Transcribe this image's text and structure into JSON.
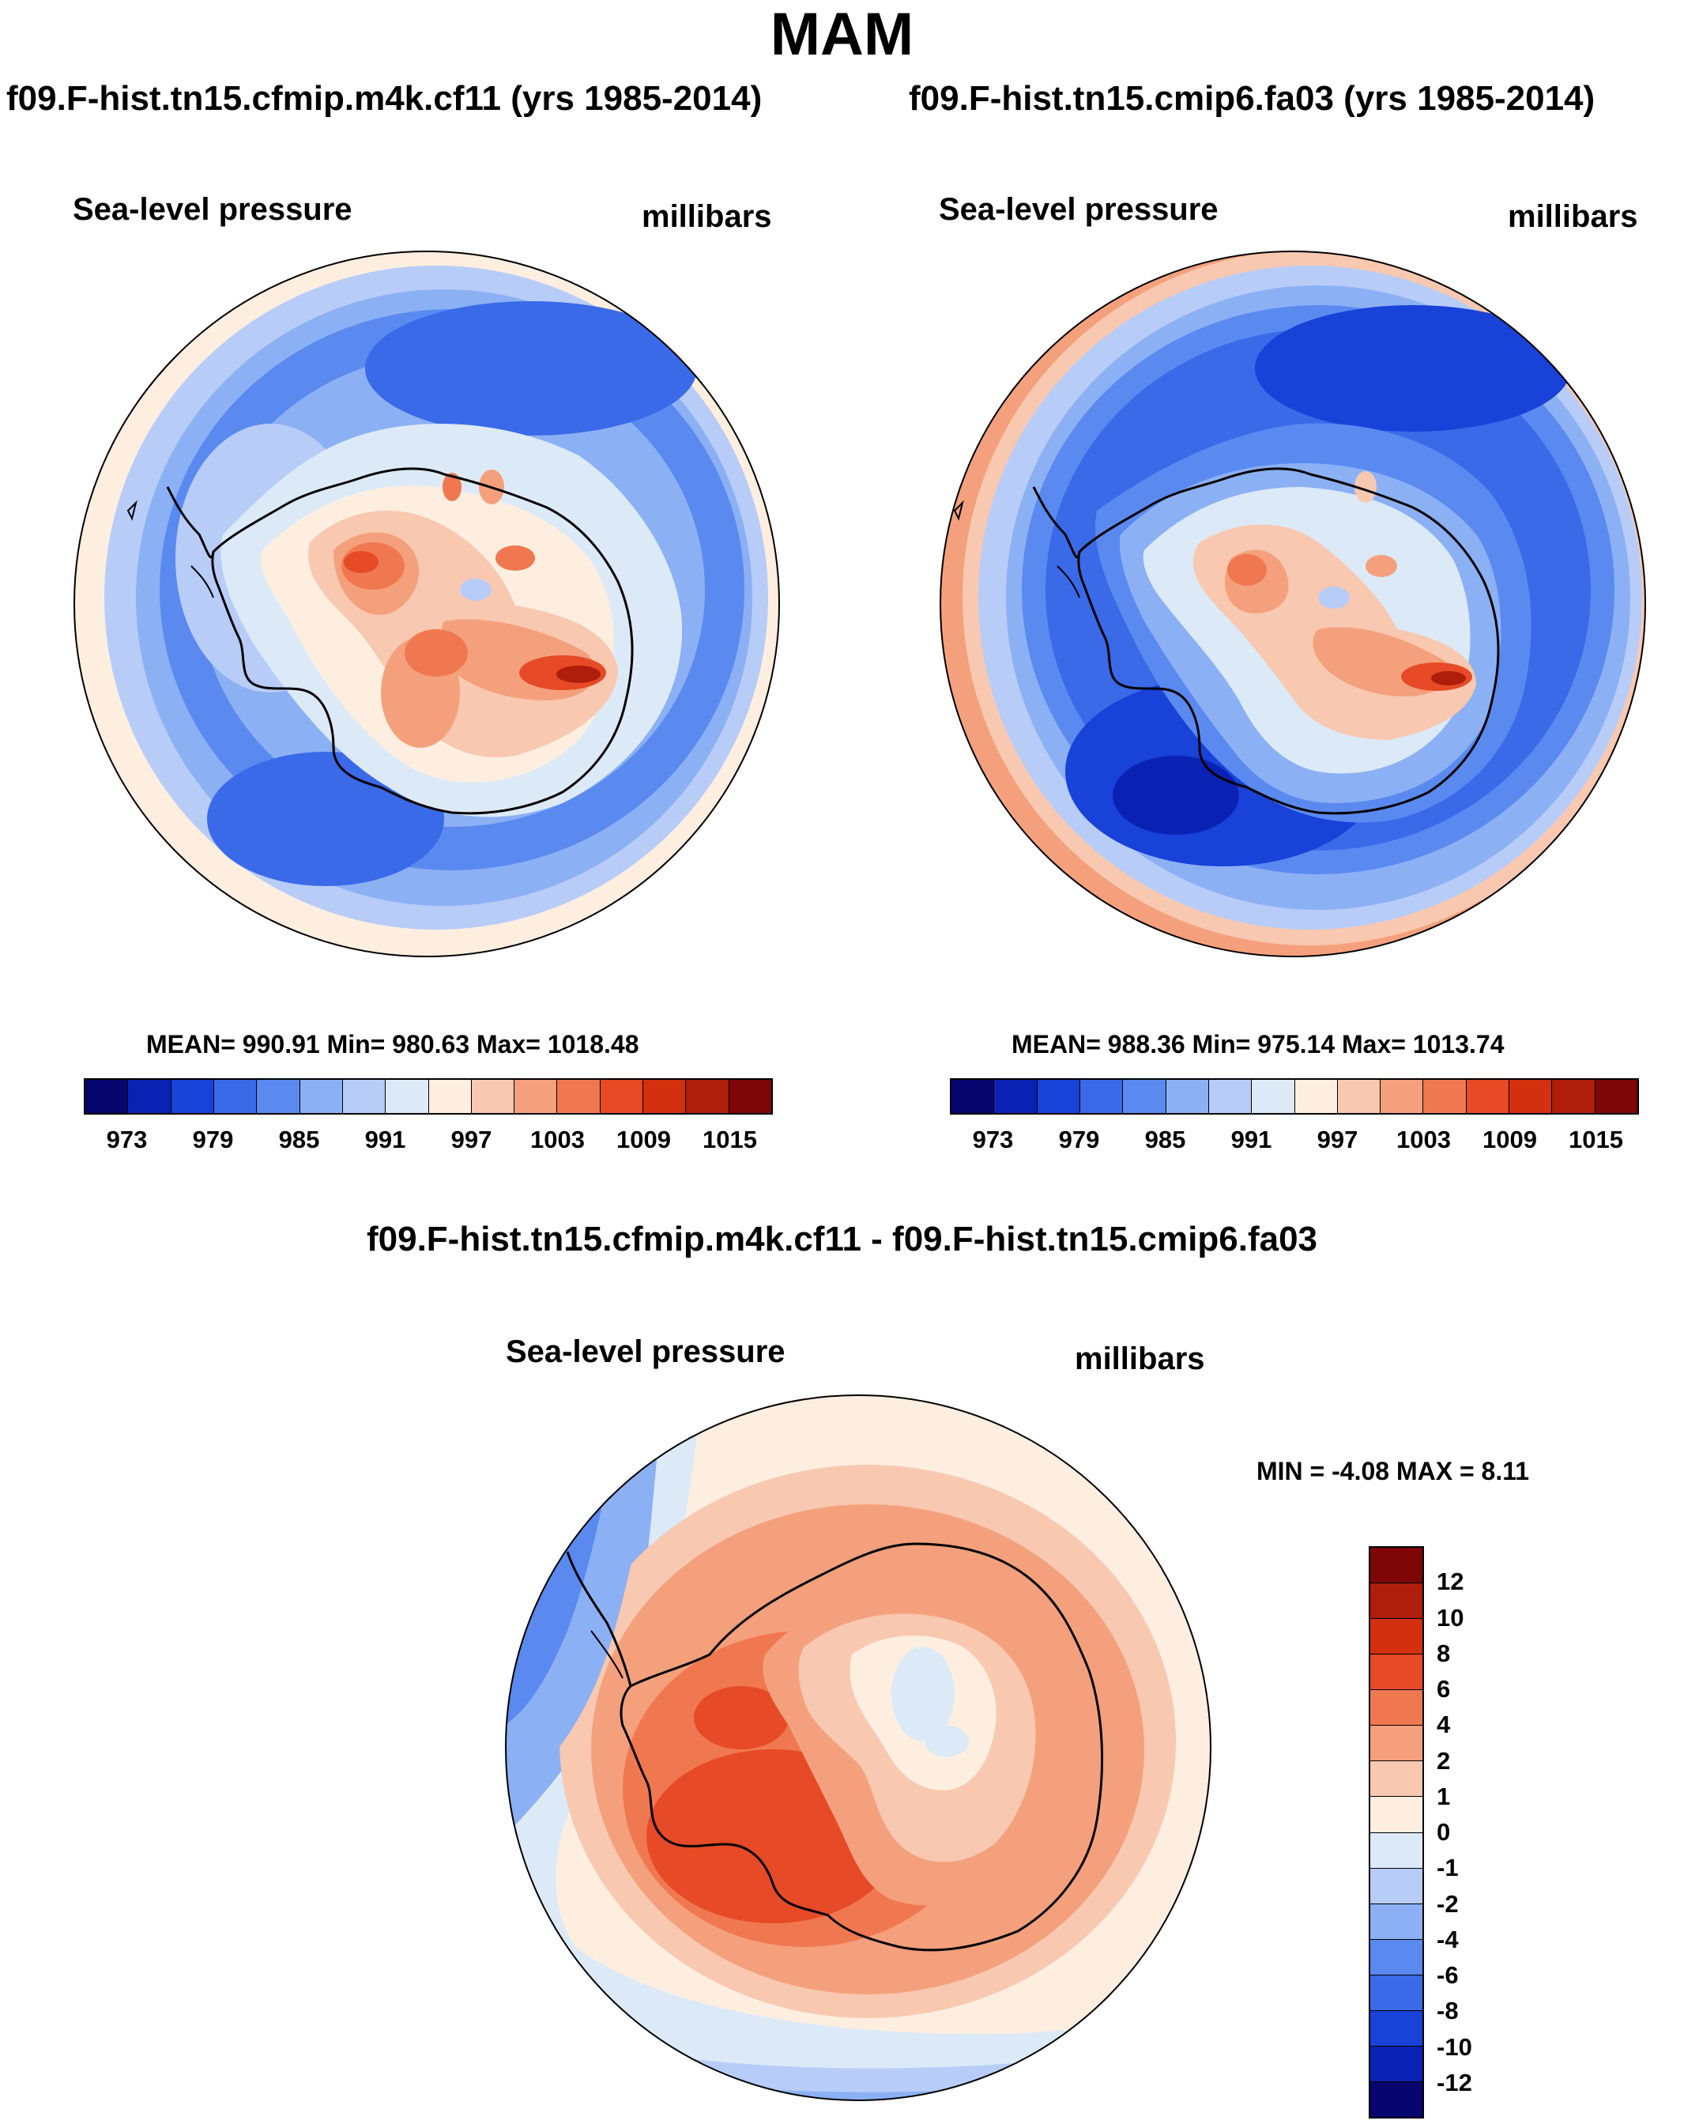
{
  "figure": {
    "season": "MAM",
    "diff_title": "f09.F-hist.tn15.cfmip.m4k.cf11 - f09.F-hist.tn15.cmip6.fa03"
  },
  "panels": [
    {
      "case": "f09.F-hist.tn15.cfmip.m4k.cf11 (yrs 1985-2014)",
      "variable": "Sea-level pressure",
      "units": "millibars",
      "stats": "MEAN= 990.91  Min= 980.63  Max= 1018.48"
    },
    {
      "case": "f09.F-hist.tn15.cmip6.fa03 (yrs 1985-2014)",
      "variable": "Sea-level pressure",
      "units": "millibars",
      "stats": "MEAN= 988.36  Min= 975.14  Max= 1013.74"
    },
    {
      "case": "",
      "variable": "Sea-level pressure",
      "units": "millibars",
      "stats": "MIN =  -4.08 MAX =   8.11"
    }
  ],
  "abs_colorbar": {
    "labels": [
      "973",
      "979",
      "985",
      "991",
      "997",
      "1003",
      "1009",
      "1015"
    ],
    "colors": [
      "#06066e",
      "#0a22b4",
      "#1842d8",
      "#3a6ae8",
      "#5a8af0",
      "#8cb0f4",
      "#b8ccf8",
      "#dceaf8",
      "#fdeee0",
      "#f8c8b0",
      "#f4a07c",
      "#f07850",
      "#e64a26",
      "#d2300e",
      "#ae1e0a",
      "#7e0606"
    ]
  },
  "diff_colorbar": {
    "labels": [
      "12",
      "10",
      "8",
      "6",
      "4",
      "2",
      "1",
      "0",
      "-1",
      "-2",
      "-4",
      "-6",
      "-8",
      "-10",
      "-12"
    ],
    "colors": [
      "#7e0606",
      "#ae1e0a",
      "#d2300e",
      "#e64a26",
      "#f07850",
      "#f4a07c",
      "#f8c8b0",
      "#fdeee0",
      "#dceaf8",
      "#b8ccf8",
      "#8cb0f4",
      "#5a8af0",
      "#3a6ae8",
      "#1842d8",
      "#0a22b4",
      "#06066e"
    ]
  }
}
